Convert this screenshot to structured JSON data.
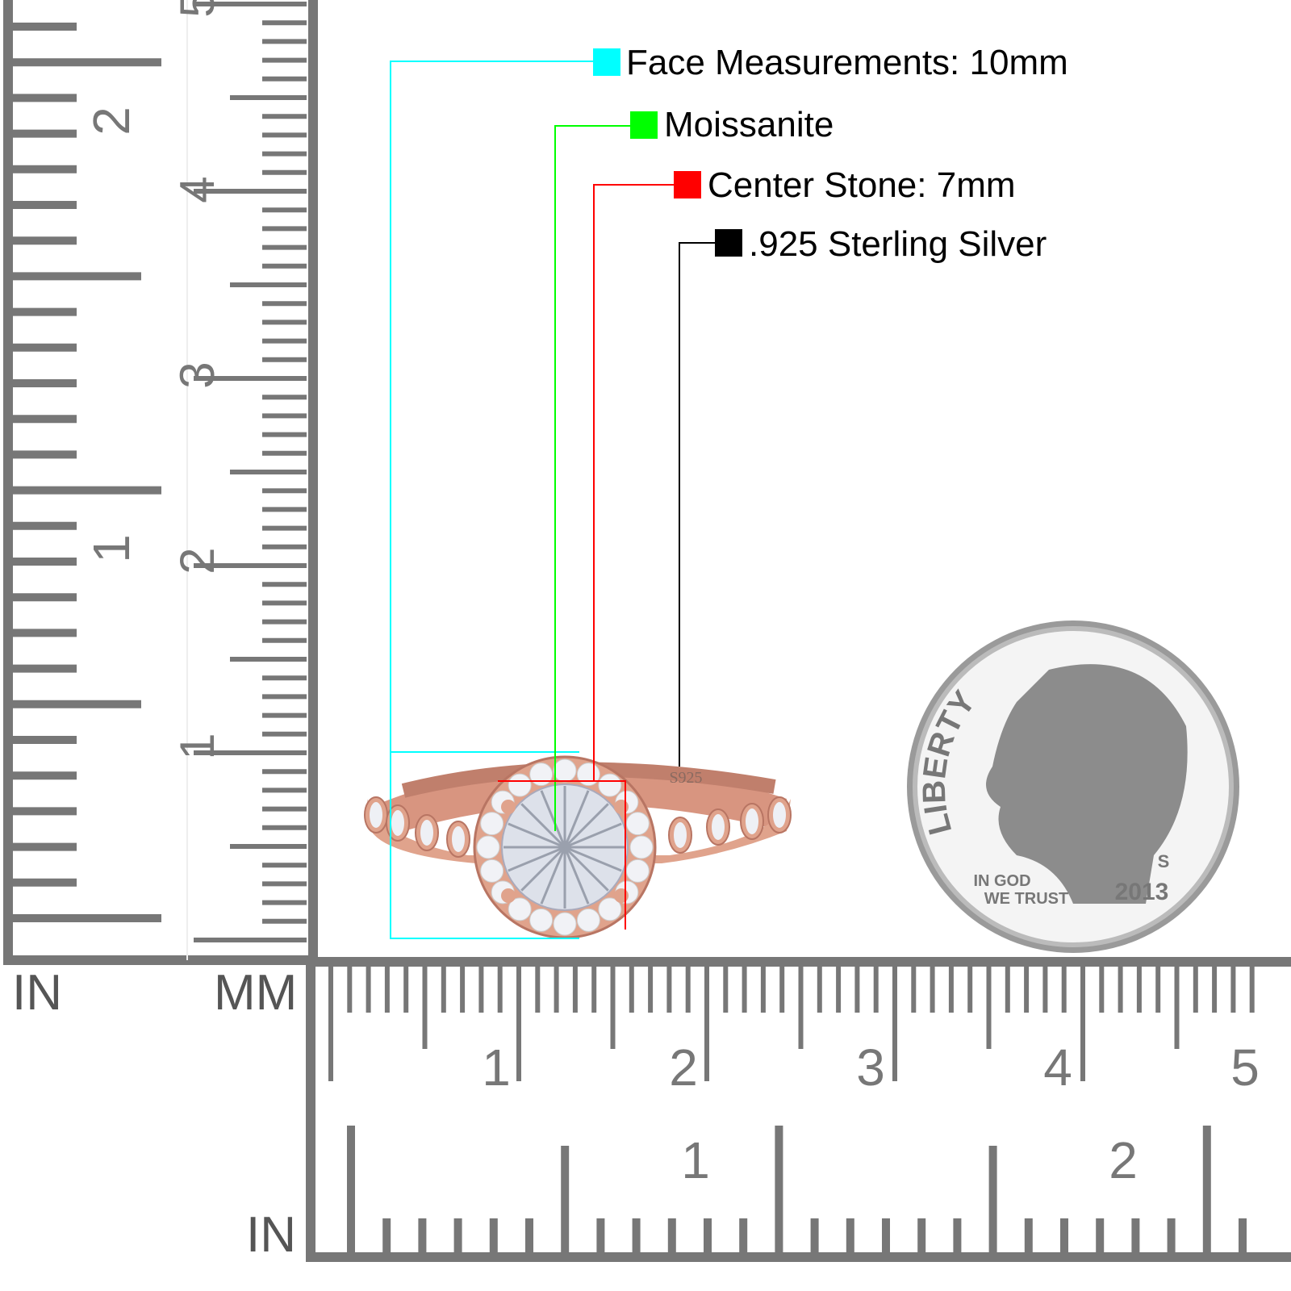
{
  "legend": [
    {
      "label": "Face Measurements: 10mm",
      "color": "#00ffff"
    },
    {
      "label": "Moissanite",
      "color": "#00ff00"
    },
    {
      "label": "Center Stone: 7mm",
      "color": "#ff0000"
    },
    {
      "label": ".925 Sterling Silver",
      "color": "#000000"
    }
  ],
  "ruler": {
    "unit_in_left": "IN",
    "unit_mm": "MM",
    "unit_in_bottom": "IN",
    "left_mm_labels": [
      "1",
      "2",
      "3",
      "4",
      "5"
    ],
    "left_in_labels": [
      "1",
      "2"
    ],
    "bottom_mm_labels": [
      "1",
      "2",
      "3",
      "4",
      "5"
    ],
    "bottom_in_labels": [
      "1",
      "2"
    ],
    "color": "#777777"
  },
  "ring": {
    "stamp": "S925",
    "metal_color": "#e0a38c"
  },
  "coin": {
    "top_text": "LIBERTY",
    "motto_1": "IN GOD",
    "motto_2": "WE TRUST",
    "year": "2013",
    "mint": "S"
  }
}
